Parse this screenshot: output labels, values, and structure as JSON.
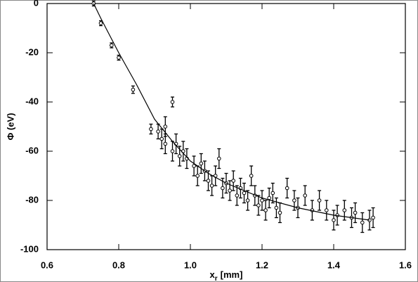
{
  "chart_data": {
    "type": "scatter",
    "ylabel": "Φ (eV)",
    "xlabel": [
      "x",
      "r",
      "[mm]"
    ],
    "xlim": [
      0.6,
      1.6
    ],
    "xticks": [
      0.6,
      0.8,
      {
        "value": 1,
        "label": "1.0"
      },
      1.2,
      1.4,
      1.6
    ],
    "ylim": [
      -100,
      0
    ],
    "yticks": [
      0,
      -20,
      -40,
      -60,
      -80,
      -100
    ],
    "series": [
      {
        "color": "#000000",
        "kind": "points",
        "x": [
          0.73,
          0.75,
          0.78,
          0.8,
          0.84,
          0.89,
          0.91,
          0.92,
          0.93,
          0.93,
          0.95,
          0.95,
          0.96,
          0.97,
          0.98,
          0.99,
          1.01,
          1.02,
          1.03,
          1.04,
          1.05,
          1.06,
          1.07,
          1.08,
          1.09,
          1.1,
          1.11,
          1.12,
          1.13,
          1.14,
          1.15,
          1.16,
          1.17,
          1.18,
          1.19,
          1.2,
          1.21,
          1.22,
          1.23,
          1.24,
          1.25,
          1.27,
          1.29,
          1.3,
          1.32,
          1.34,
          1.36,
          1.38,
          1.4,
          1.41,
          1.43,
          1.45,
          1.46,
          1.48,
          1.5,
          1.51
        ],
        "values": [
          0,
          -8,
          -17,
          -22,
          -35,
          -51,
          -52,
          -55,
          -50,
          -57,
          -40,
          -60,
          -57,
          -62,
          -60,
          -63,
          -66,
          -70,
          -65,
          -68,
          -72,
          -74,
          -70,
          -63,
          -75,
          -73,
          -76,
          -72,
          -78,
          -75,
          -77,
          -80,
          -70,
          -78,
          -82,
          -80,
          -84,
          -79,
          -77,
          -83,
          -85,
          -75,
          -80,
          -83,
          -78,
          -84,
          -80,
          -84,
          -88,
          -86,
          -84,
          -87,
          -85,
          -89,
          -88,
          -87
        ],
        "errors": [
          1,
          1,
          1,
          1,
          1.5,
          2,
          3,
          4,
          4,
          4,
          2,
          4,
          4,
          4,
          4,
          4,
          4,
          4,
          4,
          4,
          4,
          4,
          4,
          4,
          4,
          4,
          4,
          4,
          4,
          4,
          4,
          4,
          4,
          4,
          4,
          4,
          4,
          4,
          4,
          4,
          4,
          4,
          4,
          4,
          4,
          4,
          4,
          4,
          4,
          4,
          4,
          4,
          4,
          4,
          4,
          4
        ]
      },
      {
        "color": "#000000",
        "kind": "line",
        "x": [
          0.73,
          0.75,
          0.8,
          0.85,
          0.9,
          0.95,
          1.0,
          1.05,
          1.1,
          1.2,
          1.3,
          1.4,
          1.5
        ],
        "values": [
          0,
          -6,
          -20,
          -33,
          -47,
          -56,
          -64,
          -69,
          -73,
          -79,
          -83,
          -86,
          -88
        ]
      }
    ]
  }
}
